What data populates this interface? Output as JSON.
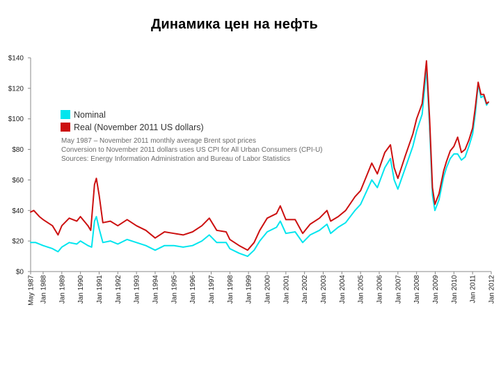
{
  "slide": {
    "title": "Динамика цен на нефть"
  },
  "chart_data": {
    "type": "line",
    "title": "Динамика цен на нефть",
    "xlabel": "",
    "ylabel": "",
    "ylim": [
      0,
      140
    ],
    "xlim": [
      1987.33,
      2012.0
    ],
    "grid": false,
    "legend_position": "top-left",
    "y_ticks": [
      {
        "value": 0,
        "label": "$0"
      },
      {
        "value": 20,
        "label": "$20"
      },
      {
        "value": 40,
        "label": "$40"
      },
      {
        "value": 60,
        "label": "$60"
      },
      {
        "value": 80,
        "label": "$80"
      },
      {
        "value": 100,
        "label": "$100"
      },
      {
        "value": 120,
        "label": "$120"
      },
      {
        "value": 140,
        "label": "$140"
      }
    ],
    "x_ticks": [
      {
        "value": 1987.33,
        "label": "May 1987"
      },
      {
        "value": 1988,
        "label": "Jan 1988"
      },
      {
        "value": 1989,
        "label": "Jan 1989"
      },
      {
        "value": 1990,
        "label": "Jan 1990"
      },
      {
        "value": 1991,
        "label": "Jan 1991"
      },
      {
        "value": 1992,
        "label": "Jan 1992"
      },
      {
        "value": 1993,
        "label": "Jan 1993"
      },
      {
        "value": 1994,
        "label": "Jan 1994"
      },
      {
        "value": 1995,
        "label": "Jan 1995"
      },
      {
        "value": 1996,
        "label": "Jan 1996"
      },
      {
        "value": 1997,
        "label": "Jan 1997"
      },
      {
        "value": 1998,
        "label": "Jan 1998"
      },
      {
        "value": 1999,
        "label": "Jan 1999"
      },
      {
        "value": 2000,
        "label": "Jan 2000"
      },
      {
        "value": 2001,
        "label": "Jan 2001"
      },
      {
        "value": 2002,
        "label": "Jan 2002"
      },
      {
        "value": 2003,
        "label": "Jan 2003"
      },
      {
        "value": 2004,
        "label": "Jan 2004"
      },
      {
        "value": 2005,
        "label": "Jan 2005"
      },
      {
        "value": 2006,
        "label": "Jan 2006"
      },
      {
        "value": 2007,
        "label": "Jan 2007"
      },
      {
        "value": 2008,
        "label": "Jan 2008"
      },
      {
        "value": 2009,
        "label": "Jan 2009"
      },
      {
        "value": 2010,
        "label": "Jan 2010"
      },
      {
        "value": 2011,
        "label": "Jan 2011"
      },
      {
        "value": 2012,
        "label": "Jan 2012"
      }
    ],
    "series": [
      {
        "name": "Nominal",
        "color": "#00e5ee",
        "points": [
          [
            1987.33,
            19
          ],
          [
            1987.6,
            19
          ],
          [
            1988.0,
            17
          ],
          [
            1988.5,
            15
          ],
          [
            1988.8,
            13
          ],
          [
            1989.0,
            16
          ],
          [
            1989.4,
            19
          ],
          [
            1989.8,
            18
          ],
          [
            1990.0,
            20
          ],
          [
            1990.4,
            17
          ],
          [
            1990.6,
            16
          ],
          [
            1990.75,
            33
          ],
          [
            1990.85,
            36
          ],
          [
            1991.0,
            28
          ],
          [
            1991.2,
            19
          ],
          [
            1991.6,
            20
          ],
          [
            1992.0,
            18
          ],
          [
            1992.5,
            21
          ],
          [
            1993.0,
            19
          ],
          [
            1993.5,
            17
          ],
          [
            1994.0,
            14
          ],
          [
            1994.5,
            17
          ],
          [
            1995.0,
            17
          ],
          [
            1995.5,
            16
          ],
          [
            1996.0,
            17
          ],
          [
            1996.5,
            20
          ],
          [
            1996.9,
            24
          ],
          [
            1997.3,
            19
          ],
          [
            1997.8,
            19
          ],
          [
            1998.0,
            15
          ],
          [
            1998.5,
            12
          ],
          [
            1998.95,
            10
          ],
          [
            1999.3,
            14
          ],
          [
            1999.6,
            20
          ],
          [
            2000.0,
            26
          ],
          [
            2000.5,
            29
          ],
          [
            2000.7,
            33
          ],
          [
            2001.0,
            25
          ],
          [
            2001.5,
            26
          ],
          [
            2001.9,
            19
          ],
          [
            2002.3,
            24
          ],
          [
            2002.8,
            27
          ],
          [
            2003.2,
            31
          ],
          [
            2003.4,
            25
          ],
          [
            2003.8,
            29
          ],
          [
            2004.2,
            32
          ],
          [
            2004.7,
            40
          ],
          [
            2005.0,
            44
          ],
          [
            2005.6,
            60
          ],
          [
            2005.9,
            55
          ],
          [
            2006.3,
            68
          ],
          [
            2006.6,
            74
          ],
          [
            2006.8,
            60
          ],
          [
            2007.0,
            54
          ],
          [
            2007.4,
            68
          ],
          [
            2007.8,
            82
          ],
          [
            2008.0,
            92
          ],
          [
            2008.3,
            103
          ],
          [
            2008.53,
            133
          ],
          [
            2008.7,
            95
          ],
          [
            2008.85,
            50
          ],
          [
            2008.98,
            40
          ],
          [
            2009.2,
            47
          ],
          [
            2009.45,
            62
          ],
          [
            2009.6,
            68
          ],
          [
            2009.8,
            74
          ],
          [
            2010.0,
            77
          ],
          [
            2010.2,
            77
          ],
          [
            2010.4,
            73
          ],
          [
            2010.6,
            75
          ],
          [
            2010.8,
            82
          ],
          [
            2011.0,
            90
          ],
          [
            2011.15,
            104
          ],
          [
            2011.3,
            123
          ],
          [
            2011.45,
            114
          ],
          [
            2011.6,
            115
          ],
          [
            2011.75,
            109
          ],
          [
            2011.85,
            111
          ]
        ]
      },
      {
        "name": "Real (November 2011 US dollars)",
        "color": "#cc1010",
        "points": [
          [
            1987.33,
            39
          ],
          [
            1987.5,
            40
          ],
          [
            1987.8,
            36
          ],
          [
            1988.0,
            34
          ],
          [
            1988.5,
            30
          ],
          [
            1988.8,
            24
          ],
          [
            1989.0,
            30
          ],
          [
            1989.4,
            35
          ],
          [
            1989.8,
            33
          ],
          [
            1990.0,
            36
          ],
          [
            1990.4,
            30
          ],
          [
            1990.55,
            27
          ],
          [
            1990.75,
            57
          ],
          [
            1990.85,
            61
          ],
          [
            1991.0,
            50
          ],
          [
            1991.2,
            32
          ],
          [
            1991.6,
            33
          ],
          [
            1992.0,
            30
          ],
          [
            1992.5,
            34
          ],
          [
            1993.0,
            30
          ],
          [
            1993.5,
            27
          ],
          [
            1994.0,
            22
          ],
          [
            1994.5,
            26
          ],
          [
            1995.0,
            25
          ],
          [
            1995.5,
            24
          ],
          [
            1996.0,
            26
          ],
          [
            1996.5,
            30
          ],
          [
            1996.9,
            35
          ],
          [
            1997.3,
            27
          ],
          [
            1997.8,
            26
          ],
          [
            1998.0,
            21
          ],
          [
            1998.5,
            17
          ],
          [
            1998.95,
            14
          ],
          [
            1999.3,
            19
          ],
          [
            1999.6,
            27
          ],
          [
            2000.0,
            35
          ],
          [
            2000.5,
            38
          ],
          [
            2000.7,
            43
          ],
          [
            2001.0,
            34
          ],
          [
            2001.5,
            34
          ],
          [
            2001.9,
            25
          ],
          [
            2002.3,
            31
          ],
          [
            2002.8,
            35
          ],
          [
            2003.2,
            40
          ],
          [
            2003.4,
            33
          ],
          [
            2003.8,
            36
          ],
          [
            2004.2,
            40
          ],
          [
            2004.7,
            49
          ],
          [
            2005.0,
            53
          ],
          [
            2005.6,
            71
          ],
          [
            2005.9,
            64
          ],
          [
            2006.3,
            78
          ],
          [
            2006.6,
            83
          ],
          [
            2006.8,
            68
          ],
          [
            2007.0,
            61
          ],
          [
            2007.4,
            76
          ],
          [
            2007.8,
            90
          ],
          [
            2008.0,
            100
          ],
          [
            2008.3,
            110
          ],
          [
            2008.53,
            138
          ],
          [
            2008.7,
            100
          ],
          [
            2008.85,
            55
          ],
          [
            2008.98,
            44
          ],
          [
            2009.2,
            51
          ],
          [
            2009.45,
            66
          ],
          [
            2009.6,
            72
          ],
          [
            2009.8,
            79
          ],
          [
            2010.0,
            82
          ],
          [
            2010.2,
            88
          ],
          [
            2010.4,
            78
          ],
          [
            2010.6,
            80
          ],
          [
            2010.8,
            86
          ],
          [
            2011.0,
            94
          ],
          [
            2011.15,
            108
          ],
          [
            2011.3,
            124
          ],
          [
            2011.45,
            116
          ],
          [
            2011.6,
            116
          ],
          [
            2011.75,
            110
          ],
          [
            2011.85,
            111
          ]
        ]
      }
    ],
    "legend": [
      {
        "label": "Nominal",
        "color": "#00e5ee"
      },
      {
        "label": "Real (November 2011 US dollars)",
        "color": "#cc1010"
      }
    ],
    "notes": [
      "May 1987 – November 2011 monthly average Brent spot prices",
      "Conversion to November 2011 dollars uses US CPI for All Urban Consumers (CPI-U)",
      "Sources: Energy Information Administration and Bureau of Labor Statistics"
    ]
  }
}
